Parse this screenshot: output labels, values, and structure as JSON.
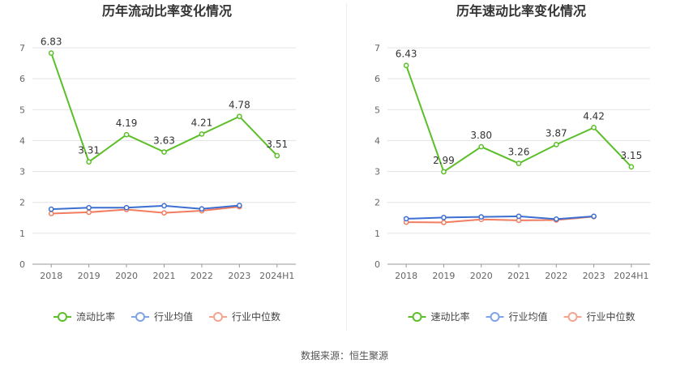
{
  "chart_data": [
    {
      "type": "line",
      "title": "历年流动比率变化情况",
      "categories": [
        "2018",
        "2019",
        "2020",
        "2021",
        "2022",
        "2023",
        "2024H1"
      ],
      "ylim": [
        0,
        7
      ],
      "yticks": [
        "0",
        "1",
        "2",
        "3",
        "4",
        "5",
        "6",
        "7"
      ],
      "grid": true,
      "legend_position": "bottom",
      "series": [
        {
          "name": "流动比率",
          "color": "#5cbf2a",
          "values": [
            6.83,
            3.31,
            4.19,
            3.63,
            4.21,
            4.78,
            3.51
          ],
          "labels": [
            "6.83",
            "3.31",
            "4.19",
            "3.63",
            "4.21",
            "4.78",
            "3.51"
          ]
        },
        {
          "name": "行业均值",
          "color": "#3c6fd1",
          "values": [
            1.78,
            1.83,
            1.83,
            1.89,
            1.79,
            1.9,
            null
          ]
        },
        {
          "name": "行业中位数",
          "color": "#f27c5f",
          "values": [
            1.64,
            1.68,
            1.77,
            1.66,
            1.73,
            1.86,
            null
          ]
        }
      ]
    },
    {
      "type": "line",
      "title": "历年速动比率变化情况",
      "categories": [
        "2018",
        "2019",
        "2020",
        "2021",
        "2022",
        "2023",
        "2024H1"
      ],
      "ylim": [
        0,
        7
      ],
      "yticks": [
        "0",
        "1",
        "2",
        "3",
        "4",
        "5",
        "6",
        "7"
      ],
      "grid": true,
      "legend_position": "bottom",
      "series": [
        {
          "name": "速动比率",
          "color": "#5cbf2a",
          "values": [
            6.43,
            2.99,
            3.8,
            3.26,
            3.87,
            4.42,
            3.15
          ],
          "labels": [
            "6.43",
            "2.99",
            "3.80",
            "3.26",
            "3.87",
            "4.42",
            "3.15"
          ]
        },
        {
          "name": "行业均值",
          "color": "#3c6fd1",
          "values": [
            1.47,
            1.51,
            1.53,
            1.55,
            1.46,
            1.55,
            null
          ]
        },
        {
          "name": "行业中位数",
          "color": "#f27c5f",
          "values": [
            1.36,
            1.35,
            1.45,
            1.42,
            1.43,
            1.54,
            null
          ]
        }
      ]
    }
  ],
  "legend_icon_colors": {
    "primary": "#5cbf2a",
    "mean": "#7fa3e8",
    "median": "#f5a58f"
  },
  "footer": {
    "source": "数据来源：恒生聚源"
  }
}
